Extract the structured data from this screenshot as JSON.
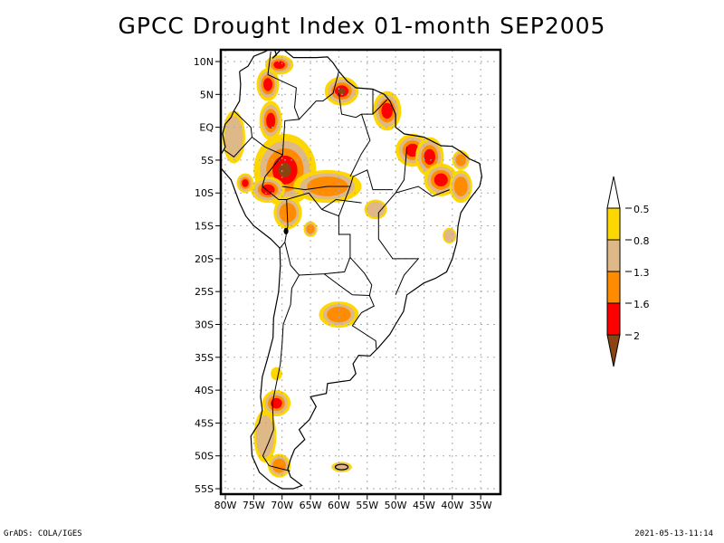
{
  "title": "GPCC Drought Index 01-month SEP2005",
  "footer": {
    "left": "GrADS: COLA/IGES",
    "right": "2021-05-13-11:14"
  },
  "map": {
    "region": "South America",
    "lon_range": [
      -80,
      -33
    ],
    "lat_range": [
      -56,
      12
    ],
    "lat_ticks": [
      {
        "v": 10,
        "label": "10N"
      },
      {
        "v": 5,
        "label": "5N"
      },
      {
        "v": 0,
        "label": "EQ"
      },
      {
        "v": -5,
        "label": "5S"
      },
      {
        "v": -10,
        "label": "10S"
      },
      {
        "v": -15,
        "label": "15S"
      },
      {
        "v": -20,
        "label": "20S"
      },
      {
        "v": -25,
        "label": "25S"
      },
      {
        "v": -30,
        "label": "30S"
      },
      {
        "v": -35,
        "label": "35S"
      },
      {
        "v": -40,
        "label": "40S"
      },
      {
        "v": -45,
        "label": "45S"
      },
      {
        "v": -50,
        "label": "50S"
      },
      {
        "v": -55,
        "label": "55S"
      }
    ],
    "lon_ticks": [
      {
        "v": -80,
        "label": "80W"
      },
      {
        "v": -75,
        "label": "75W"
      },
      {
        "v": -70,
        "label": "70W"
      },
      {
        "v": -65,
        "label": "65W"
      },
      {
        "v": -60,
        "label": "60W"
      },
      {
        "v": -55,
        "label": "55W"
      },
      {
        "v": -50,
        "label": "50W"
      },
      {
        "v": -45,
        "label": "45W"
      },
      {
        "v": -40,
        "label": "40W"
      },
      {
        "v": -35,
        "label": "35W"
      }
    ],
    "grid": true
  },
  "colorbar": {
    "levels": [
      "-0.5",
      "-0.8",
      "-1.3",
      "-1.6",
      "-2"
    ],
    "colors": [
      "#ffffff",
      "#ffd700",
      "#deb887",
      "#ff8c00",
      "#ff0000",
      "#8b4513"
    ],
    "bins": [
      {
        "range": "> -0.5",
        "color": "#ffffff"
      },
      {
        "range": "-0.8 to -0.5",
        "color": "#ffd700"
      },
      {
        "range": "-1.3 to -0.8",
        "color": "#deb887"
      },
      {
        "range": "-1.6 to -1.3",
        "color": "#ff8c00"
      },
      {
        "range": "-2 to -1.6",
        "color": "#ff0000"
      },
      {
        "range": "< -2",
        "color": "#8b4513"
      }
    ]
  },
  "drought_regions": [
    {
      "name": "western-amazon",
      "lon": -69.5,
      "lat": -6.5,
      "rx": 5.5,
      "ry": 5.5,
      "max_class": 5
    },
    {
      "name": "acre-rondonia",
      "lon": -72.5,
      "lat": -9.5,
      "rx": 3,
      "ry": 2,
      "max_class": 4
    },
    {
      "name": "amazon-south",
      "lon": -62,
      "lat": -9,
      "rx": 6,
      "ry": 2.5,
      "max_class": 3
    },
    {
      "name": "venezuela-north",
      "lon": -70.5,
      "lat": 9.5,
      "rx": 2.5,
      "ry": 1.5,
      "max_class": 4
    },
    {
      "name": "venezuela-llanos",
      "lon": -72.5,
      "lat": 6.5,
      "rx": 2,
      "ry": 2.5,
      "max_class": 4
    },
    {
      "name": "colombia-amazon",
      "lon": -72,
      "lat": 1,
      "rx": 2,
      "ry": 3,
      "max_class": 4
    },
    {
      "name": "guyana",
      "lon": -59.5,
      "lat": 5.5,
      "rx": 3,
      "ry": 2.2,
      "max_class": 5
    },
    {
      "name": "french-guiana-amapa",
      "lon": -51.5,
      "lat": 2.5,
      "rx": 2.5,
      "ry": 3,
      "max_class": 4
    },
    {
      "name": "ecuador-peru",
      "lon": -78.5,
      "lat": -1.5,
      "rx": 2,
      "ry": 4,
      "max_class": 2
    },
    {
      "name": "peru-north",
      "lon": -76.5,
      "lat": -8.5,
      "rx": 1.5,
      "ry": 1.5,
      "max_class": 4
    },
    {
      "name": "para-east",
      "lon": -47,
      "lat": -3.5,
      "rx": 3,
      "ry": 2.5,
      "max_class": 4
    },
    {
      "name": "maranhao",
      "lon": -44,
      "lat": -4.5,
      "rx": 2.5,
      "ry": 3,
      "max_class": 4
    },
    {
      "name": "piaui-bahia",
      "lon": -42,
      "lat": -8,
      "rx": 3,
      "ry": 2.5,
      "max_class": 4
    },
    {
      "name": "ceara",
      "lon": -38.5,
      "lat": -5,
      "rx": 1.5,
      "ry": 1.5,
      "max_class": 3
    },
    {
      "name": "bahia-coast",
      "lon": -38.5,
      "lat": -9,
      "rx": 2,
      "ry": 2.5,
      "max_class": 3
    },
    {
      "name": "bolivia",
      "lon": -69,
      "lat": -13,
      "rx": 2.5,
      "ry": 2.5,
      "max_class": 3
    },
    {
      "name": "bolivia-south",
      "lon": -65,
      "lat": -15.5,
      "rx": 1.2,
      "ry": 1.2,
      "max_class": 3
    },
    {
      "name": "mato-grosso",
      "lon": -53.5,
      "lat": -12.5,
      "rx": 2,
      "ry": 1.5,
      "max_class": 2
    },
    {
      "name": "minas",
      "lon": -40.5,
      "lat": -16.5,
      "rx": 1.2,
      "ry": 1.2,
      "max_class": 2
    },
    {
      "name": "argentina-ne",
      "lon": -60,
      "lat": -28.5,
      "rx": 3.5,
      "ry": 2,
      "max_class": 3
    },
    {
      "name": "chile-central",
      "lon": -71,
      "lat": -37.5,
      "rx": 1,
      "ry": 1,
      "max_class": 1
    },
    {
      "name": "patagonia-north",
      "lon": -71,
      "lat": -42,
      "rx": 2.5,
      "ry": 2,
      "max_class": 4
    },
    {
      "name": "patagonia-west",
      "lon": -73,
      "lat": -47,
      "rx": 2,
      "ry": 4,
      "max_class": 2
    },
    {
      "name": "patagonia-south",
      "lon": -70.5,
      "lat": -51.5,
      "rx": 2,
      "ry": 1.8,
      "max_class": 3
    },
    {
      "name": "falklands",
      "lon": -59.5,
      "lat": -51.7,
      "rx": 1.8,
      "ry": 0.8,
      "max_class": 2
    }
  ]
}
